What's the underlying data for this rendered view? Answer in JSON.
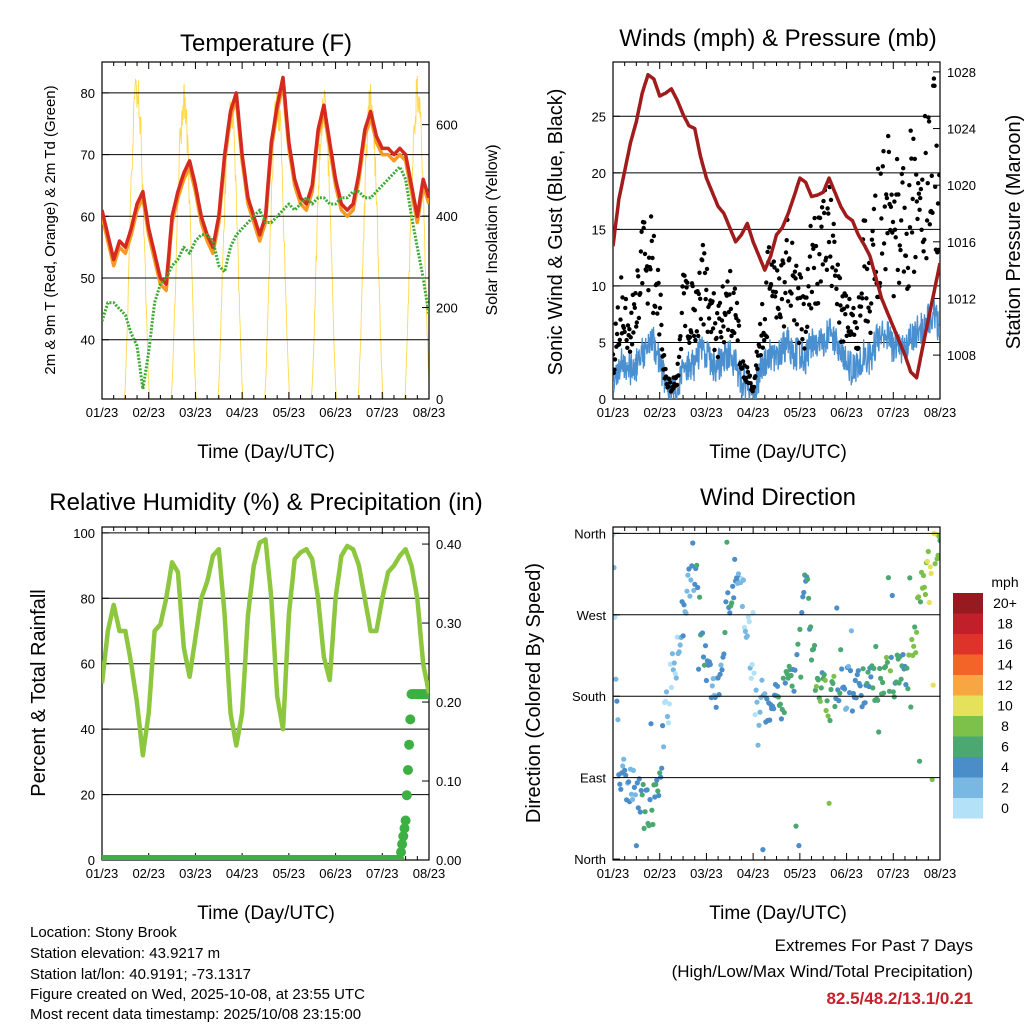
{
  "footer": {
    "location": "Location: Stony Brook",
    "elevation": "Station elevation: 43.9217 m",
    "latlon": "Station lat/lon: 40.9191; -73.1317",
    "created": "Figure created on Wed, 2025-10-08, at 23:55 UTC",
    "latest": "Most recent data timestamp: 2025/10/08 23:15:00",
    "extremes_title": "Extremes For Past 7 Days",
    "extremes_sub": "(High/Low/Max Wind/Total Precipitation)",
    "extremes_values": "82.5/48.2/13.1/0.21",
    "extremes_color": "#C8202A"
  },
  "chart_data": [
    {
      "type": "line",
      "title": "Temperature (F)",
      "xlabel": "Time (Day/UTC)",
      "ylabel": "2m & 9m T (Red, Orange) & 2m Td (Green)",
      "y2label": "Solar Insolation (Yellow)",
      "x_ticks": [
        "01/23",
        "02/23",
        "03/23",
        "04/23",
        "05/23",
        "06/23",
        "07/23",
        "08/23"
      ],
      "x_step_hours": 3,
      "ylim": [
        30.4,
        85
      ],
      "y_ticks": [
        40,
        50,
        60,
        70,
        80
      ],
      "y2lim": [
        0,
        737
      ],
      "y2_ticks": [
        0,
        200,
        400,
        600
      ],
      "grid": true,
      "series": [
        {
          "name": "2m T",
          "color": "#F59A23",
          "values": [
            60,
            56,
            52,
            55,
            54,
            57,
            61,
            63,
            57,
            53,
            49,
            48,
            59,
            63,
            66,
            68,
            64,
            59,
            56,
            54,
            59,
            69,
            76,
            79,
            69,
            62,
            59,
            56,
            59,
            71,
            77,
            81.5,
            71,
            65,
            62,
            61,
            64,
            73,
            77,
            71,
            65,
            61,
            60,
            61,
            66,
            73,
            76,
            72,
            70,
            70,
            69,
            70,
            69,
            64,
            59,
            65,
            62
          ]
        },
        {
          "name": "9m T",
          "color": "#D42A20",
          "values": [
            61,
            57,
            53,
            56,
            55,
            58,
            62,
            64,
            58,
            54,
            50,
            49,
            60,
            64,
            67,
            69,
            65,
            60,
            57,
            55,
            60,
            70,
            77,
            80,
            70,
            63,
            60,
            57,
            60,
            72,
            78,
            82.5,
            72,
            66,
            63,
            62,
            65,
            74,
            78,
            72,
            66,
            62,
            61,
            62,
            67,
            74,
            77,
            73,
            71,
            71,
            70,
            71,
            70,
            65,
            60,
            66,
            63
          ]
        },
        {
          "name": "2m Td",
          "color": "#3BAA35",
          "values": [
            43,
            46,
            46,
            45,
            44,
            41,
            39,
            32,
            38,
            46,
            49,
            50,
            52,
            53,
            55,
            54,
            56,
            57,
            57,
            56,
            52,
            51,
            55,
            57,
            58,
            59,
            60,
            61,
            59,
            59,
            60,
            61,
            62,
            61,
            62,
            63,
            62,
            63,
            63,
            62,
            62,
            63,
            63,
            64,
            64,
            63,
            63,
            64,
            65,
            66,
            67,
            68,
            66,
            60,
            55,
            50,
            44
          ]
        },
        {
          "name": "Solar Insolation",
          "color": "#FFD94A",
          "axis": "right",
          "daily_peaks": [
            740,
            700,
            690,
            700,
            700,
            700,
            720
          ],
          "peak_hours_utc": [
            18,
            42,
            66,
            90,
            114,
            138,
            162
          ]
        }
      ]
    },
    {
      "type": "line",
      "title": "Winds (mph) & Pressure (mb)",
      "xlabel": "Time (Day/UTC)",
      "ylabel": "Sonic Wind & Gust (Blue, Black)",
      "y2label": "Station Pressure (Maroon)",
      "x_ticks": [
        "01/23",
        "02/23",
        "03/23",
        "04/23",
        "05/23",
        "06/23",
        "07/23",
        "08/23"
      ],
      "x_step_hours": 3,
      "ylim": [
        0,
        29.8
      ],
      "y_ticks": [
        0,
        5,
        10,
        15,
        20,
        25
      ],
      "y2lim": [
        1004.9,
        1028.7
      ],
      "y2_ticks": [
        1008,
        1012,
        1016,
        1020,
        1024,
        1028
      ],
      "grid": true,
      "series": [
        {
          "name": "Sonic Wind",
          "color": "#4A90D0",
          "values": [
            1.5,
            3,
            3,
            2.5,
            3,
            4,
            4.5,
            5,
            3.5,
            1,
            0.5,
            1,
            2.5,
            3,
            3,
            4.5,
            4,
            3,
            3,
            3.5,
            4,
            3,
            1.5,
            1,
            0.3,
            2,
            3,
            4,
            3.5,
            4.5,
            5,
            4,
            4,
            3.5,
            5,
            5,
            5,
            6,
            5,
            4,
            3.5,
            2.5,
            3,
            4,
            3.5,
            5,
            5.5,
            5.5,
            4.5,
            5,
            4,
            5.5,
            6,
            6.5,
            7,
            7.5,
            6
          ]
        },
        {
          "name": "Gust",
          "color": "#000000",
          "values": [
            3,
            8,
            8,
            6,
            8,
            12,
            13,
            11,
            8,
            2,
            1,
            2,
            8,
            8,
            7,
            10,
            10,
            7,
            6,
            8,
            10,
            7,
            3,
            2,
            1,
            5,
            8,
            11,
            9,
            10,
            12,
            9,
            8,
            7,
            12,
            12,
            13,
            15,
            11,
            8,
            7,
            6,
            7,
            12,
            9,
            14,
            16,
            17,
            15,
            16,
            14,
            17,
            18,
            17,
            20,
            21,
            18
          ]
        },
        {
          "name": "Station Pressure",
          "color": "#A01C1C",
          "axis": "right",
          "values": [
            1015.7,
            1019,
            1021,
            1023,
            1024.5,
            1026.5,
            1027.8,
            1027.5,
            1026.3,
            1026.5,
            1026.8,
            1026,
            1025,
            1024.2,
            1024,
            1022,
            1020.5,
            1019.5,
            1018.5,
            1018,
            1017,
            1016,
            1016.5,
            1017.3,
            1016,
            1015,
            1014,
            1015,
            1016.5,
            1017,
            1018,
            1019.2,
            1020.5,
            1020.2,
            1019.2,
            1019.3,
            1019.5,
            1020.5,
            1019.5,
            1018.5,
            1017.8,
            1017.5,
            1016.5,
            1015.8,
            1015,
            1013.5,
            1012,
            1011,
            1010,
            1009,
            1008,
            1006.8,
            1006.4,
            1008.5,
            1010.5,
            1012.5,
            1014.5
          ]
        }
      ]
    },
    {
      "type": "line",
      "title": "Relative Humidity (%) & Precipitation (in)",
      "xlabel": "Time (Day/UTC)",
      "ylabel": "Percent & Total Rainfall",
      "x_ticks": [
        "01/23",
        "02/23",
        "03/23",
        "04/23",
        "05/23",
        "06/23",
        "07/23",
        "08/23"
      ],
      "x_step_hours": 3,
      "ylim": [
        0,
        101.8
      ],
      "y_ticks": [
        0,
        20,
        40,
        60,
        80,
        100
      ],
      "y2lim": [
        0,
        0.4216
      ],
      "y2_ticks": [
        "0.00",
        "0.10",
        "0.20",
        "0.30",
        "0.40"
      ],
      "grid": true,
      "series": [
        {
          "name": "Relative Humidity",
          "color": "#8DC63F",
          "values": [
            54,
            70,
            78,
            70,
            70,
            60,
            48,
            32,
            45,
            70,
            72,
            80,
            91,
            88,
            65,
            56,
            68,
            80,
            85,
            93,
            95,
            75,
            45,
            35,
            45,
            75,
            90,
            97,
            98,
            80,
            50,
            40,
            75,
            92,
            94,
            95,
            92,
            80,
            62,
            55,
            80,
            93,
            96,
            95,
            90,
            80,
            70,
            70,
            80,
            88,
            90,
            93,
            95,
            90,
            80,
            60,
            51
          ]
        },
        {
          "name": "Total Precipitation",
          "color": "#3DB043",
          "axis": "right",
          "values": [
            0,
            0,
            0,
            0,
            0,
            0,
            0,
            0,
            0,
            0,
            0,
            0,
            0,
            0,
            0,
            0,
            0,
            0,
            0,
            0,
            0,
            0,
            0,
            0,
            0,
            0,
            0,
            0,
            0,
            0,
            0,
            0,
            0,
            0,
            0,
            0,
            0,
            0,
            0,
            0,
            0,
            0,
            0,
            0,
            0,
            0,
            0,
            0,
            0,
            0,
            0,
            0,
            0.05,
            0.21,
            0.21,
            0.21,
            0.21
          ]
        }
      ]
    },
    {
      "type": "scatter",
      "title": "Wind Direction",
      "xlabel": "Time (Day/UTC)",
      "ylabel": "Direction (Colored By Speed)",
      "x_ticks": [
        "01/23",
        "02/23",
        "03/23",
        "04/23",
        "05/23",
        "06/23",
        "07/23",
        "08/23"
      ],
      "x_step_hours": 3,
      "ylim": [
        -1,
        367
      ],
      "y_ticks": [
        {
          "value": 0,
          "label": "North"
        },
        {
          "value": 90,
          "label": "East"
        },
        {
          "value": 180,
          "label": "South"
        },
        {
          "value": 270,
          "label": "West"
        },
        {
          "value": 360,
          "label": "North"
        }
      ],
      "grid": true,
      "direction_deg": [
        355,
        90,
        95,
        80,
        70,
        60,
        50,
        60,
        90,
        170,
        200,
        230,
        270,
        300,
        320,
        270,
        210,
        190,
        180,
        250,
        290,
        320,
        300,
        260,
        200,
        150,
        170,
        175,
        175,
        180,
        190,
        200,
        250,
        320,
        240,
        190,
        180,
        175,
        180,
        185,
        190,
        185,
        185,
        190,
        195,
        190,
        195,
        200,
        200,
        205,
        205,
        210,
        260,
        300,
        330,
        345,
        350
      ],
      "legend": {
        "title": "mph",
        "placement": "right",
        "labels": [
          "20+",
          "18",
          "16",
          "14",
          "12",
          "10",
          "8",
          "6",
          "4",
          "2",
          "0"
        ],
        "colors": [
          "#961A1F",
          "#C1202A",
          "#DE3329",
          "#F26428",
          "#F7A642",
          "#E6E15A",
          "#7DC04A",
          "#4AA870",
          "#4A8DC8",
          "#7AB8E4",
          "#B3E1F7"
        ]
      }
    }
  ]
}
